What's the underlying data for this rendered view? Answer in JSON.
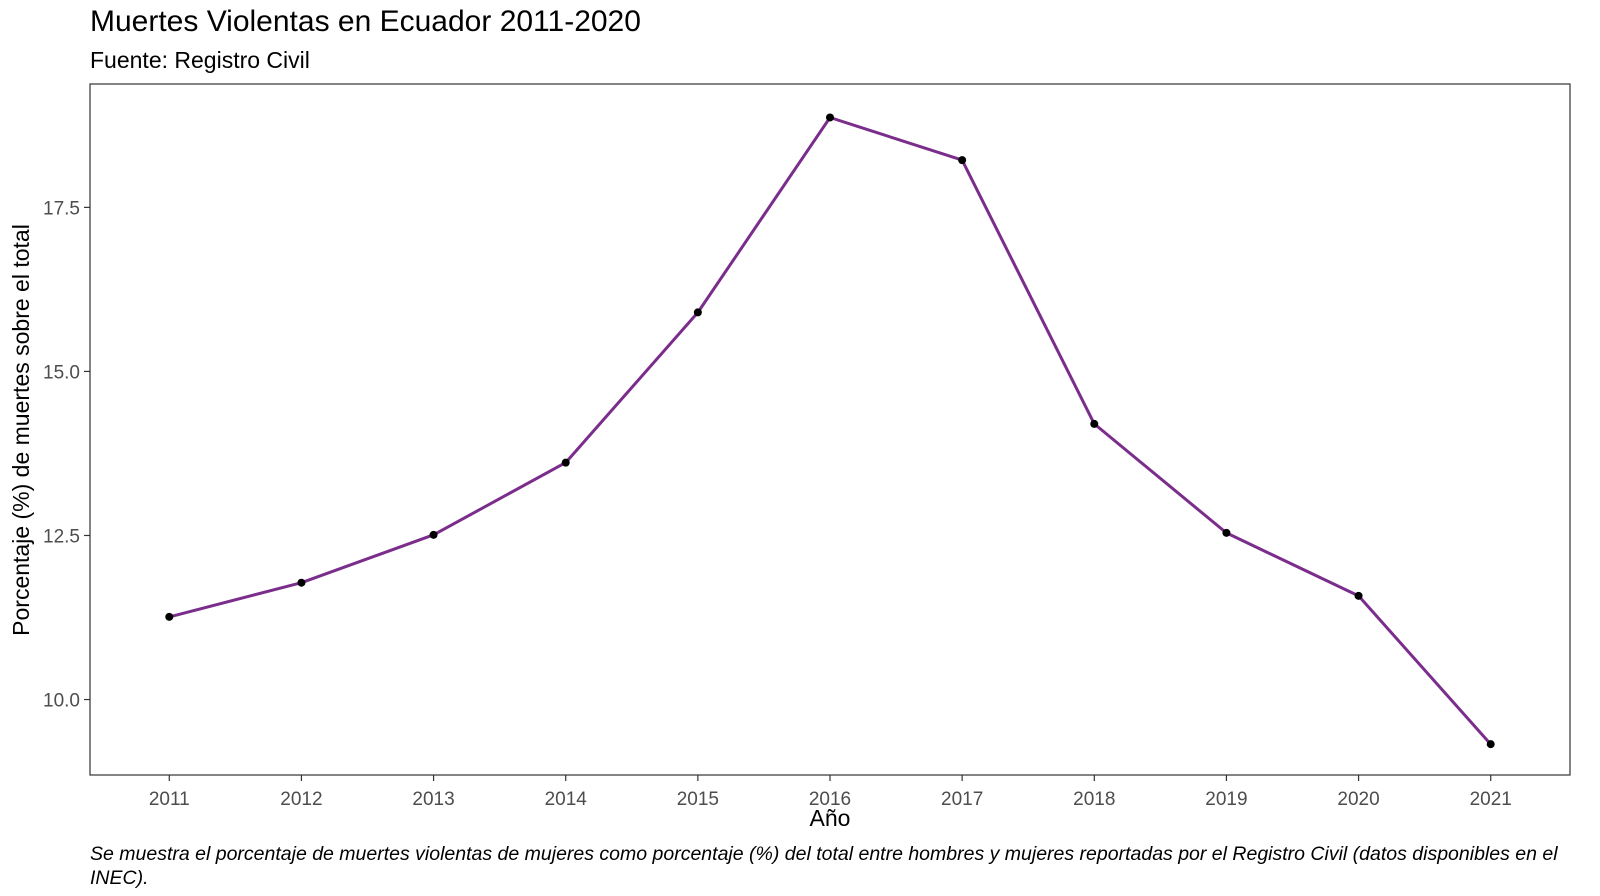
{
  "chart_data": {
    "type": "line",
    "title": "Muertes Violentas en Ecuador 2011-2020",
    "subtitle": "Fuente: Registro Civil",
    "xlabel": "Año",
    "ylabel": "Porcentaje (%) de muertes sobre el total",
    "caption": "Se muestra el porcentaje de muertes violentas de mujeres como porcentaje (%) del total entre hombres y mujeres reportadas por el Registro Civil (datos disponibles en el INEC).",
    "x": [
      2011,
      2012,
      2013,
      2014,
      2015,
      2016,
      2017,
      2018,
      2019,
      2020,
      2021
    ],
    "x_tick_labels": [
      "2011",
      "2012",
      "2013",
      "2014",
      "2015",
      "2016",
      "2017",
      "2018",
      "2019",
      "2020",
      "2021"
    ],
    "series": [
      {
        "values": [
          11.26,
          11.78,
          12.51,
          13.61,
          15.9,
          18.87,
          18.22,
          14.2,
          12.54,
          11.58,
          9.32
        ]
      }
    ],
    "y_ticks": [
      10.0,
      12.5,
      15.0,
      17.5
    ],
    "y_tick_labels": [
      "10.0",
      "12.5",
      "15.0",
      "17.5"
    ],
    "xlim": [
      2010.4,
      2021.6
    ],
    "ylim": [
      8.85,
      19.38
    ],
    "grid": false,
    "colors": {
      "line": "#7b2d8b",
      "points": "#000000",
      "frame": "#333333"
    }
  }
}
